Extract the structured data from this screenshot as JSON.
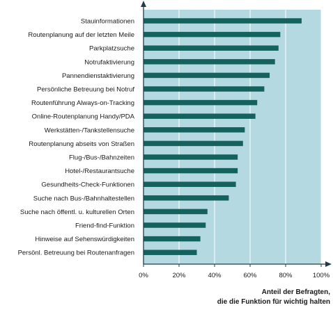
{
  "chart_data": {
    "type": "bar",
    "orientation": "horizontal",
    "categories": [
      "Stauinformationen",
      "Routenplanung auf der letzten Meile",
      "Parkplatzsuche",
      "Notrufaktivierung",
      "Pannendienstaktivierung",
      "Persönliche Betreuung bei Notruf",
      "Routenführung Always-on-Tracking",
      "Online-Routenplanung Handy/PDA",
      "Werkstätten-/Tankstellensuche",
      "Routenplanung abseits von Straßen",
      "Flug-/Bus-/Bahnzeiten",
      "Hotel-/Restaurantsuche",
      "Gesundheits-Check-Funktionen",
      "Suche nach Bus-/Bahnhaltestellen",
      "Suche nach öffentl. u. kulturellen Orten",
      "Friend-find-Funktion",
      "Hinweise auf Sehenswürdigkeiten",
      "Persönl. Betreuung bei Routenanfragen"
    ],
    "values": [
      89,
      77,
      76,
      74,
      71,
      68,
      64,
      63,
      57,
      56,
      53,
      53,
      52,
      48,
      36,
      35,
      32,
      30
    ],
    "unit": "%",
    "xlim": [
      0,
      100
    ],
    "xticks": [
      "0%",
      "20%",
      "40%",
      "60%",
      "80%",
      "100%"
    ],
    "xlabel_lines": [
      "Anteil der Befragten,",
      "die die Funktion für wichtig halten"
    ],
    "grid": true,
    "colors": {
      "plot_background": "#b5d9e0",
      "bar": "#15615e",
      "gridline": "#ffffff",
      "axis": "#1d3f4a"
    }
  }
}
